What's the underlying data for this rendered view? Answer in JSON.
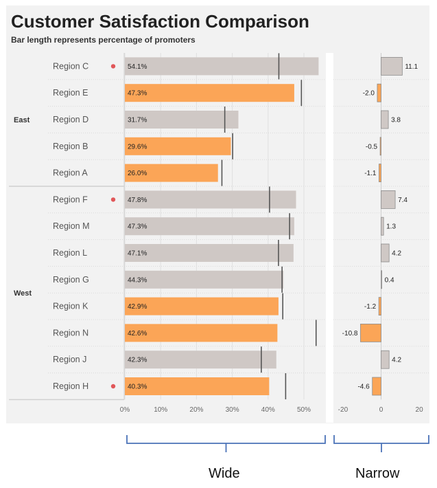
{
  "chart_data": {
    "type": "bar",
    "title": "Customer Satisfaction Comparison",
    "subtitle": "Bar length represents percentage of promoters",
    "groups": [
      {
        "name": "East",
        "regions": [
          "Region C",
          "Region E",
          "Region D",
          "Region B",
          "Region A"
        ]
      },
      {
        "name": "West",
        "regions": [
          "Region F",
          "Region M",
          "Region L",
          "Region G",
          "Region K",
          "Region N",
          "Region J",
          "Region H"
        ]
      }
    ],
    "rows": [
      {
        "region": "Region C",
        "group": "East",
        "value": 54.1,
        "label": "54.1%",
        "reference": 43.0,
        "diff": 11.1,
        "diff_label": "11.1",
        "highlight": false,
        "marker": true
      },
      {
        "region": "Region E",
        "group": "East",
        "value": 47.3,
        "label": "47.3%",
        "reference": 49.3,
        "diff": -2.0,
        "diff_label": "-2.0",
        "highlight": true,
        "marker": false
      },
      {
        "region": "Region D",
        "group": "East",
        "value": 31.7,
        "label": "31.7%",
        "reference": 27.9,
        "diff": 3.8,
        "diff_label": "3.8",
        "highlight": false,
        "marker": false
      },
      {
        "region": "Region B",
        "group": "East",
        "value": 29.6,
        "label": "29.6%",
        "reference": 30.1,
        "diff": -0.5,
        "diff_label": "-0.5",
        "highlight": true,
        "marker": false
      },
      {
        "region": "Region A",
        "group": "East",
        "value": 26.0,
        "label": "26.0%",
        "reference": 27.1,
        "diff": -1.1,
        "diff_label": "-1.1",
        "highlight": true,
        "marker": false
      },
      {
        "region": "Region F",
        "group": "West",
        "value": 47.8,
        "label": "47.8%",
        "reference": 40.4,
        "diff": 7.4,
        "diff_label": "7.4",
        "highlight": false,
        "marker": true
      },
      {
        "region": "Region M",
        "group": "West",
        "value": 47.3,
        "label": "47.3%",
        "reference": 46.0,
        "diff": 1.3,
        "diff_label": "1.3",
        "highlight": false,
        "marker": false
      },
      {
        "region": "Region L",
        "group": "West",
        "value": 47.1,
        "label": "47.1%",
        "reference": 42.9,
        "diff": 4.2,
        "diff_label": "4.2",
        "highlight": false,
        "marker": false
      },
      {
        "region": "Region G",
        "group": "West",
        "value": 44.3,
        "label": "44.3%",
        "reference": 43.9,
        "diff": 0.4,
        "diff_label": "0.4",
        "highlight": false,
        "marker": false
      },
      {
        "region": "Region K",
        "group": "West",
        "value": 42.9,
        "label": "42.9%",
        "reference": 44.1,
        "diff": -1.2,
        "diff_label": "-1.2",
        "highlight": true,
        "marker": false
      },
      {
        "region": "Region N",
        "group": "West",
        "value": 42.6,
        "label": "42.6%",
        "reference": 53.4,
        "diff": -10.8,
        "diff_label": "-10.8",
        "highlight": true,
        "marker": false
      },
      {
        "region": "Region J",
        "group": "West",
        "value": 42.3,
        "label": "42.3%",
        "reference": 38.1,
        "diff": 4.2,
        "diff_label": "4.2",
        "highlight": false,
        "marker": false
      },
      {
        "region": "Region H",
        "group": "West",
        "value": 40.3,
        "label": "40.3%",
        "reference": 44.9,
        "diff": -4.6,
        "diff_label": "-4.6",
        "highlight": true,
        "marker": true
      }
    ],
    "wide_axis": {
      "range": [
        0,
        56
      ],
      "ticks": [
        0,
        10,
        20,
        30,
        40,
        50
      ],
      "tick_labels": [
        "0%",
        "10%",
        "20%",
        "30%",
        "40%",
        "50%"
      ]
    },
    "narrow_axis": {
      "range": [
        -25,
        25
      ],
      "ticks": [
        -20,
        0,
        20
      ],
      "tick_labels": [
        "-20",
        "0",
        "20"
      ]
    },
    "colors": {
      "bar_default": "#cfc8c5",
      "bar_highlight": "#fba557",
      "marker": "#e15759",
      "reference": "#555555",
      "panel": "#f2f2f2",
      "brace": "#4a72b8"
    }
  },
  "captions": {
    "wide": "Wide",
    "narrow": "Narrow"
  }
}
